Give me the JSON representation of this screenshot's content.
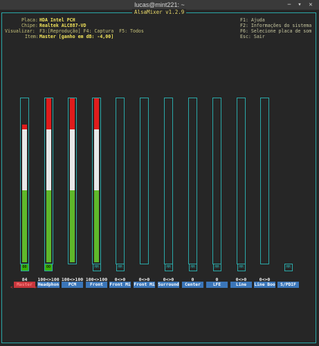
{
  "window": {
    "title": "lucas@mint221: ~",
    "restore_glyph": "▾",
    "close_glyph": "✕",
    "minimize_glyph": "−"
  },
  "app": {
    "title": "AlsaMixer v1.2.9"
  },
  "info": {
    "card_label": "Placa:",
    "card_value": "HDA Intel PCH",
    "chip_label": "Chipe:",
    "chip_value": "Realtek ALC887-VD",
    "view_label": "Visualizar:",
    "view_value": "F3:[Reprodução] F4: Captura  F5: Todos",
    "item_label": "Item:",
    "item_value": "Master [ganho em dB: -4,00]"
  },
  "keys": {
    "f1": "F1: Ajuda",
    "f2": "F2: Informações do sistema",
    "f6": "F6: Selecione placa de som",
    "esc": "Esc: Sair"
  },
  "colors": {
    "green": "#5fb82a",
    "white": "#e8e8e8",
    "red": "#e01c1c",
    "cyan": "#2aa9a9"
  },
  "channels": [
    {
      "label": "Master",
      "volume": "84",
      "level": 0.84,
      "badge": "OO",
      "muted": false,
      "selected": true
    },
    {
      "label": "Headphon",
      "volume": "100<>100",
      "level": 1.0,
      "badge": "OO",
      "muted": false,
      "selected": false
    },
    {
      "label": "PCM",
      "volume": "100<>100",
      "level": 1.0,
      "badge": "",
      "muted": false,
      "selected": false
    },
    {
      "label": "Front",
      "volume": "100<>100",
      "level": 1.0,
      "badge": "MM",
      "muted": true,
      "selected": false
    },
    {
      "label": "Front Mi",
      "volume": "0<>0",
      "level": 0,
      "badge": "MM",
      "muted": true,
      "selected": false
    },
    {
      "label": "Front Mi",
      "volume": "0<>0",
      "level": 0,
      "badge": "",
      "muted": false,
      "selected": false
    },
    {
      "label": "Surround",
      "volume": "0<>0",
      "level": 0,
      "badge": "MM",
      "muted": true,
      "selected": false
    },
    {
      "label": "Center",
      "volume": "0",
      "level": 0,
      "badge": "MM",
      "muted": true,
      "selected": false
    },
    {
      "label": "LFE",
      "volume": "0",
      "level": 0,
      "badge": "MM",
      "muted": true,
      "selected": false
    },
    {
      "label": "Line",
      "volume": "0<>0",
      "level": 0,
      "badge": "MM",
      "muted": true,
      "selected": false
    },
    {
      "label": "Line Boo",
      "volume": "0<>0",
      "level": 0,
      "badge": "",
      "muted": false,
      "selected": false
    },
    {
      "label": "S/PDIF",
      "volume": "",
      "level": null,
      "badge": "MM",
      "muted": true,
      "selected": false
    }
  ],
  "selection_marker": "<",
  "selection_marker_right": ">"
}
